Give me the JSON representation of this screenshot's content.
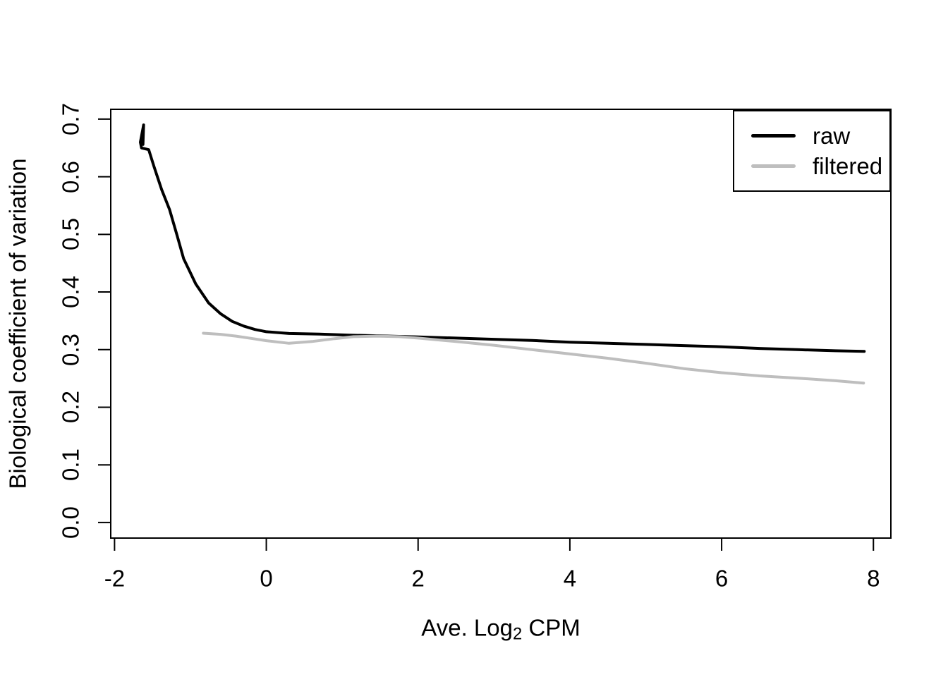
{
  "figure": {
    "background_color": "#ffffff",
    "frame_color": "#000000"
  },
  "chart_data": {
    "type": "line",
    "title": "",
    "xlabel_parts": {
      "pre": "Ave. Log",
      "sub": "2",
      "post": " CPM"
    },
    "xlabel_text": "Ave. Log2 CPM",
    "ylabel": "Biological coefficient of variation",
    "xlim": [
      -2.05,
      8.23
    ],
    "ylim": [
      -0.027,
      0.717
    ],
    "grid": false,
    "x_ticks": [
      {
        "label": "-2",
        "value": -2
      },
      {
        "label": "0",
        "value": 0
      },
      {
        "label": "2",
        "value": 2
      },
      {
        "label": "4",
        "value": 4
      },
      {
        "label": "6",
        "value": 6
      },
      {
        "label": "8",
        "value": 8
      }
    ],
    "y_ticks": [
      {
        "label": "0.0",
        "value": 0.0
      },
      {
        "label": "0.1",
        "value": 0.1
      },
      {
        "label": "0.2",
        "value": 0.2
      },
      {
        "label": "0.3",
        "value": 0.3
      },
      {
        "label": "0.4",
        "value": 0.4
      },
      {
        "label": "0.5",
        "value": 0.5
      },
      {
        "label": "0.6",
        "value": 0.6
      },
      {
        "label": "0.7",
        "value": 0.7
      }
    ],
    "legend": {
      "position": "topright",
      "entries": [
        {
          "label": "raw",
          "color": "#000000"
        },
        {
          "label": "filtered",
          "color": "#bebebe"
        }
      ]
    },
    "series": [
      {
        "name": "raw",
        "color": "#000000",
        "line_width": 4,
        "points": [
          [
            -1.625,
            0.656
          ],
          [
            -1.617,
            0.69
          ],
          [
            -1.66,
            0.66
          ],
          [
            -1.645,
            0.65
          ],
          [
            -1.55,
            0.647
          ],
          [
            -1.478,
            0.617
          ],
          [
            -1.38,
            0.578
          ],
          [
            -1.275,
            0.543
          ],
          [
            -1.18,
            0.5
          ],
          [
            -1.09,
            0.458
          ],
          [
            -0.93,
            0.414
          ],
          [
            -0.76,
            0.381
          ],
          [
            -0.6,
            0.362
          ],
          [
            -0.45,
            0.349
          ],
          [
            -0.3,
            0.341
          ],
          [
            -0.15,
            0.335
          ],
          [
            0.0,
            0.331
          ],
          [
            0.3,
            0.328
          ],
          [
            0.7,
            0.327
          ],
          [
            1.1,
            0.325
          ],
          [
            1.5,
            0.324
          ],
          [
            2.0,
            0.322
          ],
          [
            2.5,
            0.32
          ],
          [
            3.0,
            0.318
          ],
          [
            3.5,
            0.316
          ],
          [
            4.0,
            0.313
          ],
          [
            4.5,
            0.311
          ],
          [
            5.0,
            0.309
          ],
          [
            5.5,
            0.307
          ],
          [
            6.0,
            0.305
          ],
          [
            6.5,
            0.302
          ],
          [
            7.0,
            0.3
          ],
          [
            7.5,
            0.298
          ],
          [
            7.88,
            0.297
          ]
        ]
      },
      {
        "name": "filtered",
        "color": "#bebebe",
        "line_width": 4,
        "points": [
          [
            -0.83,
            0.3285
          ],
          [
            -0.6,
            0.3265
          ],
          [
            -0.4,
            0.3235
          ],
          [
            -0.2,
            0.3195
          ],
          [
            0.0,
            0.3155
          ],
          [
            0.3,
            0.311
          ],
          [
            0.6,
            0.314
          ],
          [
            0.9,
            0.319
          ],
          [
            1.15,
            0.3225
          ],
          [
            1.45,
            0.3235
          ],
          [
            1.75,
            0.3225
          ],
          [
            2.0,
            0.32
          ],
          [
            2.5,
            0.314
          ],
          [
            3.0,
            0.3075
          ],
          [
            3.5,
            0.3
          ],
          [
            4.0,
            0.2925
          ],
          [
            4.5,
            0.285
          ],
          [
            5.0,
            0.2765
          ],
          [
            5.5,
            0.267
          ],
          [
            6.0,
            0.26
          ],
          [
            6.5,
            0.2545
          ],
          [
            7.0,
            0.2505
          ],
          [
            7.5,
            0.246
          ],
          [
            7.87,
            0.242
          ]
        ]
      }
    ]
  }
}
